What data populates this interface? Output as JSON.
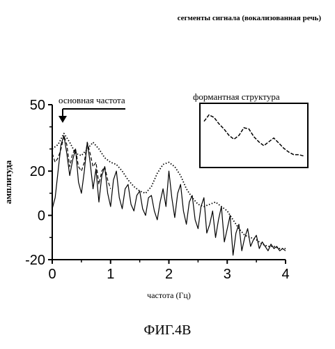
{
  "header": {
    "caption": "сегменты сигнала (вокализованная речь)"
  },
  "figure": {
    "caption": "ФИГ.4В"
  },
  "chart_data": {
    "type": "line",
    "xlabel": "частота (Гц)",
    "ylabel": "амплитуда",
    "xlim": [
      0,
      4
    ],
    "ylim": [
      -20,
      50
    ],
    "x_ticks": [
      "0",
      "1",
      "2",
      "3",
      "4"
    ],
    "y_ticks": [
      "50",
      "20",
      "0",
      "-20"
    ],
    "y_tick_values": [
      50,
      20,
      0,
      -20
    ],
    "grid": false,
    "annotations": {
      "fundamental": "основная частота",
      "formant": "формантная структура"
    },
    "series": [
      {
        "style": "solid",
        "x": [
          0.0,
          0.05,
          0.1,
          0.15,
          0.2,
          0.25,
          0.3,
          0.35,
          0.4,
          0.45,
          0.5,
          0.55,
          0.6,
          0.65,
          0.7,
          0.75,
          0.8,
          0.85,
          0.9,
          0.95,
          1.0,
          1.05,
          1.1,
          1.15,
          1.2,
          1.25,
          1.3,
          1.35,
          1.4,
          1.45,
          1.5,
          1.55,
          1.6,
          1.65,
          1.7,
          1.75,
          1.8,
          1.85,
          1.9,
          1.95,
          2.0,
          2.05,
          2.1,
          2.15,
          2.2,
          2.25,
          2.3,
          2.35,
          2.4,
          2.45,
          2.5,
          2.55,
          2.6,
          2.65,
          2.7,
          2.75,
          2.8,
          2.85,
          2.9,
          2.95,
          3.0,
          3.05,
          3.1,
          3.15,
          3.2,
          3.25,
          3.3,
          3.35,
          3.4,
          3.45,
          3.5,
          3.55,
          3.6,
          3.65,
          3.7,
          3.75,
          3.8,
          3.85,
          3.9,
          3.95,
          4.0
        ],
        "y": [
          3,
          8,
          20,
          32,
          36,
          28,
          18,
          25,
          30,
          15,
          10,
          20,
          33,
          24,
          12,
          21,
          6,
          18,
          22,
          10,
          4,
          16,
          20,
          8,
          3,
          12,
          14,
          5,
          2,
          9,
          11,
          3,
          0,
          8,
          9,
          2,
          -2,
          6,
          12,
          4,
          20,
          8,
          -1,
          10,
          14,
          2,
          -4,
          6,
          9,
          -2,
          -6,
          4,
          8,
          -8,
          -4,
          2,
          -10,
          -2,
          4,
          -12,
          -6,
          0,
          -18,
          -8,
          -4,
          -16,
          -10,
          -6,
          -14,
          -11,
          -9,
          -15,
          -12,
          -14,
          -16,
          -13,
          -15,
          -14,
          -16,
          -15,
          -16
        ]
      },
      {
        "style": "dashed",
        "x": [
          0.0,
          0.05,
          0.1,
          0.15,
          0.2,
          0.25,
          0.3,
          0.35,
          0.4,
          0.45,
          0.5,
          0.55,
          0.6,
          0.65,
          0.7,
          0.75,
          0.8,
          0.85,
          0.9,
          0.95,
          1.0
        ],
        "y": [
          28,
          24,
          26,
          30,
          36,
          32,
          22,
          28,
          30,
          22,
          20,
          24,
          33,
          28,
          22,
          24,
          14,
          20,
          22,
          16,
          12
        ]
      },
      {
        "style": "dotted",
        "x": [
          0.0,
          0.1,
          0.2,
          0.3,
          0.4,
          0.5,
          0.6,
          0.7,
          0.8,
          0.9,
          1.0,
          1.1,
          1.2,
          1.3,
          1.4,
          1.5,
          1.6,
          1.7,
          1.8,
          1.9,
          2.0,
          2.1,
          2.2,
          2.3,
          2.4,
          2.5,
          2.6,
          2.7,
          2.8,
          2.9,
          3.0,
          3.1,
          3.2,
          3.3,
          3.4,
          3.5,
          3.6,
          3.7,
          3.8,
          3.9,
          4.0
        ],
        "y": [
          30,
          32,
          37,
          33,
          28,
          27,
          30,
          33,
          30,
          26,
          24,
          23,
          20,
          16,
          13,
          11,
          10,
          13,
          19,
          23,
          24,
          22,
          18,
          12,
          8,
          5,
          4,
          5,
          6,
          4,
          2,
          -2,
          -6,
          -9,
          -10,
          -11,
          -13,
          -14,
          -14,
          -15,
          -15
        ]
      }
    ],
    "inset": {
      "x": [
        0,
        1,
        2,
        3,
        4,
        5,
        6,
        7,
        8,
        9,
        10,
        11,
        12,
        13,
        14,
        15,
        16,
        17,
        18,
        19,
        20
      ],
      "y": [
        0.72,
        0.82,
        0.78,
        0.68,
        0.6,
        0.5,
        0.44,
        0.5,
        0.62,
        0.6,
        0.48,
        0.4,
        0.34,
        0.4,
        0.46,
        0.38,
        0.3,
        0.24,
        0.2,
        0.2,
        0.18
      ]
    }
  }
}
